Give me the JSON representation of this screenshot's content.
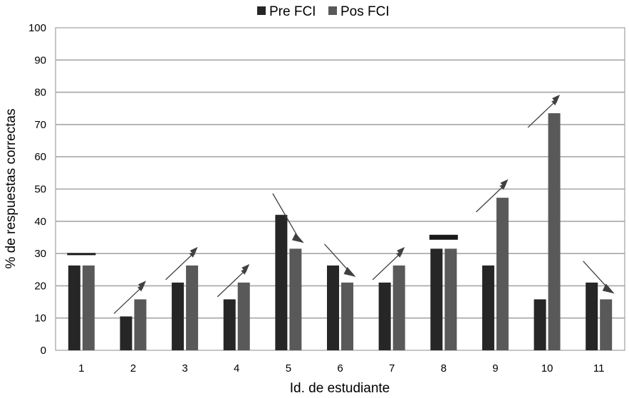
{
  "chart_data": {
    "type": "bar",
    "categories": [
      "1",
      "2",
      "3",
      "4",
      "5",
      "6",
      "7",
      "8",
      "9",
      "10",
      "11"
    ],
    "series": [
      {
        "name": "Pre FCI",
        "color": "#262626",
        "values": [
          26.3,
          10.5,
          21.0,
          15.8,
          42.0,
          26.3,
          21.0,
          31.5,
          26.3,
          15.8,
          21.0
        ]
      },
      {
        "name": "Pos FCI",
        "color": "#595959",
        "values": [
          26.3,
          15.8,
          26.3,
          21.0,
          31.5,
          21.0,
          26.3,
          31.5,
          47.3,
          73.5,
          15.8
        ]
      }
    ],
    "ylabel": "% de respuestas correctas",
    "xlabel": "Id. de estudiante",
    "ylim": [
      0,
      100
    ],
    "yticks": [
      "0",
      "10",
      "20",
      "30",
      "40",
      "50",
      "60",
      "70",
      "80",
      "90",
      "100"
    ],
    "grid": true,
    "legend_position": "top",
    "annotations": [
      {
        "category": "1",
        "kind": "equal-bar"
      },
      {
        "category": "2",
        "kind": "arrow-up"
      },
      {
        "category": "3",
        "kind": "arrow-up"
      },
      {
        "category": "4",
        "kind": "arrow-up"
      },
      {
        "category": "5",
        "kind": "arrow-down"
      },
      {
        "category": "6",
        "kind": "arrow-down"
      },
      {
        "category": "7",
        "kind": "arrow-up"
      },
      {
        "category": "8",
        "kind": "equal-bar"
      },
      {
        "category": "9",
        "kind": "arrow-up"
      },
      {
        "category": "10",
        "kind": "arrow-up"
      },
      {
        "category": "11",
        "kind": "arrow-down"
      }
    ]
  }
}
